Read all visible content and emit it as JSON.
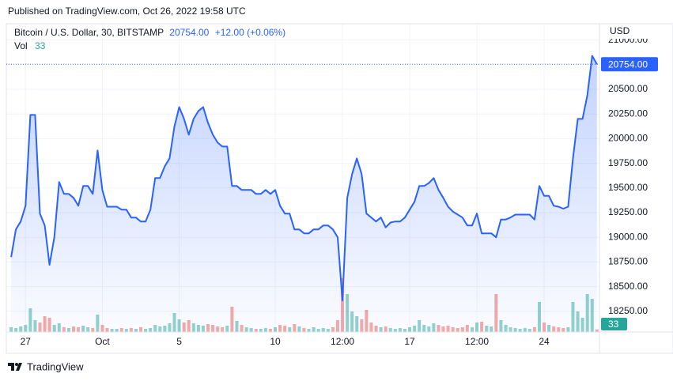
{
  "published": "Published on TradingView.com, Oct 26, 2022 19:58 UTC",
  "brand": "TradingView",
  "chart_data": {
    "type": "area",
    "symbol": "Bitcoin / U.S. Dollar, 30, BITSTAMP",
    "price_label": "20754.00",
    "change_label": "+12.00 (+0.06%)",
    "currency": "USD",
    "volume_label": "Vol",
    "grid": true,
    "volume_colors": {
      "up": "#26a69a",
      "down": "#ef5350"
    },
    "xlim": [
      -1,
      29.88
    ],
    "xticks": [
      {
        "value": 0,
        "label": "27"
      },
      {
        "value": 4,
        "label": "Oct"
      },
      {
        "value": 8,
        "label": "5"
      },
      {
        "value": 13,
        "label": "10"
      },
      {
        "value": 16.5,
        "label": "12:00"
      },
      {
        "value": 20,
        "label": "17"
      },
      {
        "value": 23.5,
        "label": "12:00"
      },
      {
        "value": 27,
        "label": "24"
      }
    ],
    "ylim": [
      18040,
      21165
    ],
    "yticks": [
      {
        "value": 18250,
        "label": "18250.00"
      },
      {
        "value": 18500,
        "label": "18500.00"
      },
      {
        "value": 18750,
        "label": "18750.00"
      },
      {
        "value": 19000,
        "label": "19000.00"
      },
      {
        "value": 19250,
        "label": "19250.00"
      },
      {
        "value": 19500,
        "label": "19500.00"
      },
      {
        "value": 19750,
        "label": "19750.00"
      },
      {
        "value": 20000,
        "label": "20000.00"
      },
      {
        "value": 20250,
        "label": "20250.00"
      },
      {
        "value": 20500,
        "label": "20500.00"
      },
      {
        "value": 21000,
        "label": "21000.00"
      }
    ],
    "y2lim": [
      0,
      800
    ],
    "x": [
      -0.75,
      -0.5,
      -0.25,
      0,
      0.25,
      0.5,
      0.75,
      1,
      1.25,
      1.5,
      1.75,
      2,
      2.25,
      2.5,
      2.75,
      3,
      3.25,
      3.5,
      3.75,
      4,
      4.25,
      4.5,
      4.75,
      5,
      5.25,
      5.5,
      5.75,
      6,
      6.25,
      6.5,
      6.75,
      7,
      7.25,
      7.5,
      7.75,
      8,
      8.25,
      8.5,
      8.75,
      9,
      9.25,
      9.5,
      9.75,
      10,
      10.25,
      10.5,
      10.75,
      11,
      11.25,
      11.5,
      11.75,
      12,
      12.25,
      12.5,
      12.75,
      13,
      13.25,
      13.5,
      13.75,
      14,
      14.25,
      14.5,
      14.75,
      15,
      15.25,
      15.5,
      15.75,
      16,
      16.25,
      16.5,
      16.75,
      17,
      17.25,
      17.5,
      17.75,
      18,
      18.25,
      18.5,
      18.75,
      19,
      19.25,
      19.5,
      19.75,
      20,
      20.25,
      20.5,
      20.75,
      21,
      21.25,
      21.5,
      21.75,
      22,
      22.25,
      22.5,
      22.75,
      23,
      23.25,
      23.5,
      23.75,
      24,
      24.25,
      24.5,
      24.75,
      25,
      25.25,
      25.5,
      25.75,
      26,
      26.25,
      26.5,
      26.75,
      27,
      27.25,
      27.5,
      27.75,
      28,
      28.25,
      28.5,
      28.75,
      29,
      29.25,
      29.5,
      29.75
    ],
    "series": [
      {
        "name": "Bitcoin / U.S. Dollar, 30, BITSTAMP",
        "color": "#2962ff",
        "values": [
          18800,
          19080,
          19160,
          19320,
          20240,
          20240,
          19240,
          19120,
          18720,
          19000,
          19560,
          19440,
          19440,
          19400,
          19320,
          19520,
          19520,
          19440,
          19880,
          19480,
          19310,
          19310,
          19310,
          19280,
          19280,
          19200,
          19200,
          19160,
          19160,
          19280,
          19600,
          19600,
          19720,
          19800,
          20120,
          20320,
          20200,
          20040,
          20200,
          20280,
          20320,
          20160,
          20040,
          19960,
          19920,
          19920,
          19520,
          19520,
          19480,
          19480,
          19480,
          19440,
          19440,
          19480,
          19440,
          19480,
          19320,
          19240,
          19240,
          19080,
          19080,
          19040,
          19040,
          19080,
          19080,
          19120,
          19120,
          19080,
          19000,
          18360,
          19400,
          19640,
          19800,
          19640,
          19240,
          19200,
          19160,
          19200,
          19100,
          19150,
          19160,
          19160,
          19200,
          19280,
          19360,
          19520,
          19520,
          19550,
          19600,
          19480,
          19400,
          19310,
          19260,
          19230,
          19200,
          19120,
          19120,
          19240,
          19040,
          19040,
          19040,
          19000,
          19180,
          19180,
          19200,
          19230,
          19230,
          19230,
          19230,
          19180,
          19520,
          19420,
          19420,
          19320,
          19310,
          19290,
          19310,
          19800,
          20200,
          20200,
          20440,
          20840,
          20754
        ]
      },
      {
        "name": "Vol",
        "axis": "y2",
        "values": [
          60,
          50,
          70,
          90,
          300,
          150,
          120,
          200,
          180,
          90,
          110,
          60,
          50,
          70,
          60,
          80,
          60,
          50,
          220,
          90,
          50,
          40,
          40,
          50,
          40,
          50,
          40,
          60,
          40,
          50,
          90,
          70,
          80,
          110,
          240,
          160,
          120,
          150,
          110,
          90,
          80,
          100,
          90,
          70,
          60,
          80,
          320,
          140,
          90,
          60,
          50,
          40,
          40,
          50,
          40,
          60,
          90,
          80,
          60,
          100,
          70,
          50,
          40,
          60,
          40,
          50,
          40,
          60,
          150,
          680,
          480,
          260,
          200,
          160,
          280,
          120,
          80,
          60,
          70,
          50,
          40,
          50,
          40,
          60,
          80,
          150,
          90,
          70,
          110,
          90,
          70,
          80,
          60,
          50,
          60,
          90,
          60,
          120,
          130,
          80,
          70,
          480,
          150,
          90,
          60,
          50,
          40,
          50,
          40,
          60,
          380,
          120,
          90,
          70,
          60,
          50,
          60,
          380,
          260,
          180,
          480,
          420,
          33
        ]
      }
    ]
  }
}
